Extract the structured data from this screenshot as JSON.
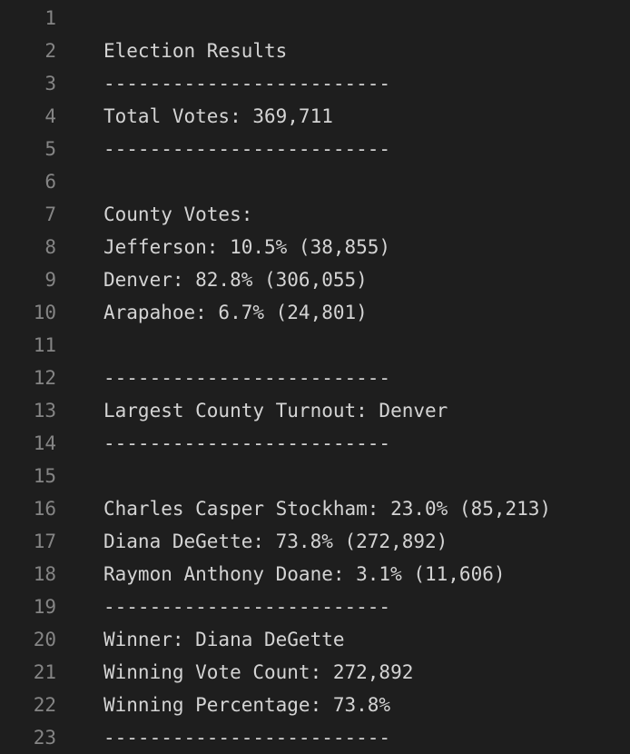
{
  "editor": {
    "lines": [
      {
        "number": "1",
        "text": ""
      },
      {
        "number": "2",
        "text": "Election Results"
      },
      {
        "number": "3",
        "text": "-------------------------"
      },
      {
        "number": "4",
        "text": "Total Votes: 369,711"
      },
      {
        "number": "5",
        "text": "-------------------------"
      },
      {
        "number": "6",
        "text": ""
      },
      {
        "number": "7",
        "text": "County Votes:"
      },
      {
        "number": "8",
        "text": "Jefferson: 10.5% (38,855)"
      },
      {
        "number": "9",
        "text": "Denver: 82.8% (306,055)"
      },
      {
        "number": "10",
        "text": "Arapahoe: 6.7% (24,801)"
      },
      {
        "number": "11",
        "text": ""
      },
      {
        "number": "12",
        "text": "-------------------------"
      },
      {
        "number": "13",
        "text": "Largest County Turnout: Denver"
      },
      {
        "number": "14",
        "text": "-------------------------"
      },
      {
        "number": "15",
        "text": ""
      },
      {
        "number": "16",
        "text": "Charles Casper Stockham: 23.0% (85,213)"
      },
      {
        "number": "17",
        "text": "Diana DeGette: 73.8% (272,892)"
      },
      {
        "number": "18",
        "text": "Raymon Anthony Doane: 3.1% (11,606)"
      },
      {
        "number": "19",
        "text": "-------------------------"
      },
      {
        "number": "20",
        "text": "Winner: Diana DeGette"
      },
      {
        "number": "21",
        "text": "Winning Vote Count: 272,892"
      },
      {
        "number": "22",
        "text": "Winning Percentage: 73.8%"
      },
      {
        "number": "23",
        "text": "-------------------------"
      }
    ]
  },
  "colors": {
    "background": "#1e1e1e",
    "text": "#d4d4d4",
    "line_number": "#858585"
  }
}
